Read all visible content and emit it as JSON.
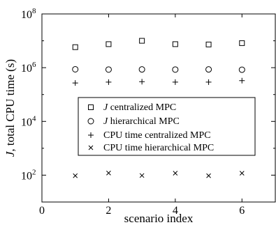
{
  "chart_data": {
    "type": "scatter",
    "xlabel": "scenario index",
    "ylabel_prefix": "J",
    "ylabel_rest": ", total CPU time (s)",
    "xlim": [
      0,
      7
    ],
    "ylim_log10": [
      1,
      8
    ],
    "log_scale_y": true,
    "grid": false,
    "legend_position": "center",
    "x_ticks": [
      {
        "value": 0,
        "label": "0"
      },
      {
        "value": 2,
        "label": "2"
      },
      {
        "value": 4,
        "label": "4"
      },
      {
        "value": 6,
        "label": "6"
      }
    ],
    "y_ticks": [
      {
        "exp": 2,
        "base": "10",
        "sup": "2"
      },
      {
        "exp": 4,
        "base": "10",
        "sup": "4"
      },
      {
        "exp": 6,
        "base": "10",
        "sup": "6"
      },
      {
        "exp": 8,
        "base": "10",
        "sup": "8"
      }
    ],
    "series": [
      {
        "name_prefix": "J",
        "name_rest": " centralized MPC",
        "marker": "square",
        "x": [
          1,
          2,
          3,
          4,
          5,
          6
        ],
        "y": [
          5800000,
          7500000,
          10000000,
          7500000,
          7300000,
          8200000
        ]
      },
      {
        "name_prefix": "J",
        "name_rest": " hierarchical MPC",
        "marker": "circle",
        "x": [
          1,
          2,
          3,
          4,
          5,
          6
        ],
        "y": [
          870000,
          850000,
          860000,
          850000,
          860000,
          840000
        ]
      },
      {
        "name_prefix": "",
        "name_rest": "CPU time centralized MPC",
        "marker": "plus",
        "x": [
          1,
          2,
          3,
          4,
          5,
          6
        ],
        "y": [
          270000,
          290000,
          300000,
          290000,
          290000,
          330000
        ]
      },
      {
        "name_prefix": "",
        "name_rest": "CPU time hierarchical MPC",
        "marker": "cross",
        "x": [
          1,
          2,
          3,
          4,
          5,
          6
        ],
        "y": [
          95,
          120,
          97,
          118,
          95,
          118
        ]
      }
    ]
  }
}
